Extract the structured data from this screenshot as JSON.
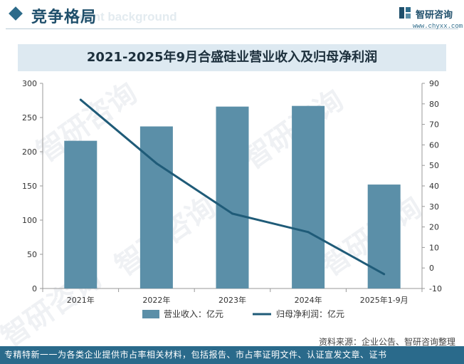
{
  "header": {
    "title": "竞争格局",
    "bg_word": "ment background",
    "logo_brand": "智研咨询",
    "logo_site": "www.chyxx.com"
  },
  "watermark": "智研咨询",
  "chart_data": {
    "type": "bar",
    "title": "2021-2025年9月合盛硅业营业收入及归母净利润",
    "categories": [
      "2021年",
      "2022年",
      "2023年",
      "2024年",
      "2025年1-9月"
    ],
    "series": [
      {
        "name": "营业收入：亿元",
        "type": "bar",
        "axis": "left",
        "color": "#5b8fa8",
        "values": [
          216,
          237,
          266,
          267,
          152
        ]
      },
      {
        "name": "归母净利润：亿元",
        "type": "line",
        "axis": "right",
        "color": "#1f5b78",
        "values": [
          82,
          51,
          26.5,
          17.5,
          -3
        ]
      }
    ],
    "y_left": {
      "min": 0,
      "max": 300,
      "ticks": [
        0,
        50,
        100,
        150,
        200,
        250,
        300
      ]
    },
    "y_right": {
      "min": -10,
      "max": 90,
      "ticks": [
        -10,
        0,
        10,
        20,
        30,
        40,
        50,
        60,
        70,
        80,
        90
      ]
    },
    "grid": false,
    "legend_position": "bottom"
  },
  "source": "资料来源：企业公告、智研咨询整理",
  "footer": "专精特新一一为各类企业提供市占率相关材料，包括报告、市占率证明文件、认证宣发文章、证书"
}
